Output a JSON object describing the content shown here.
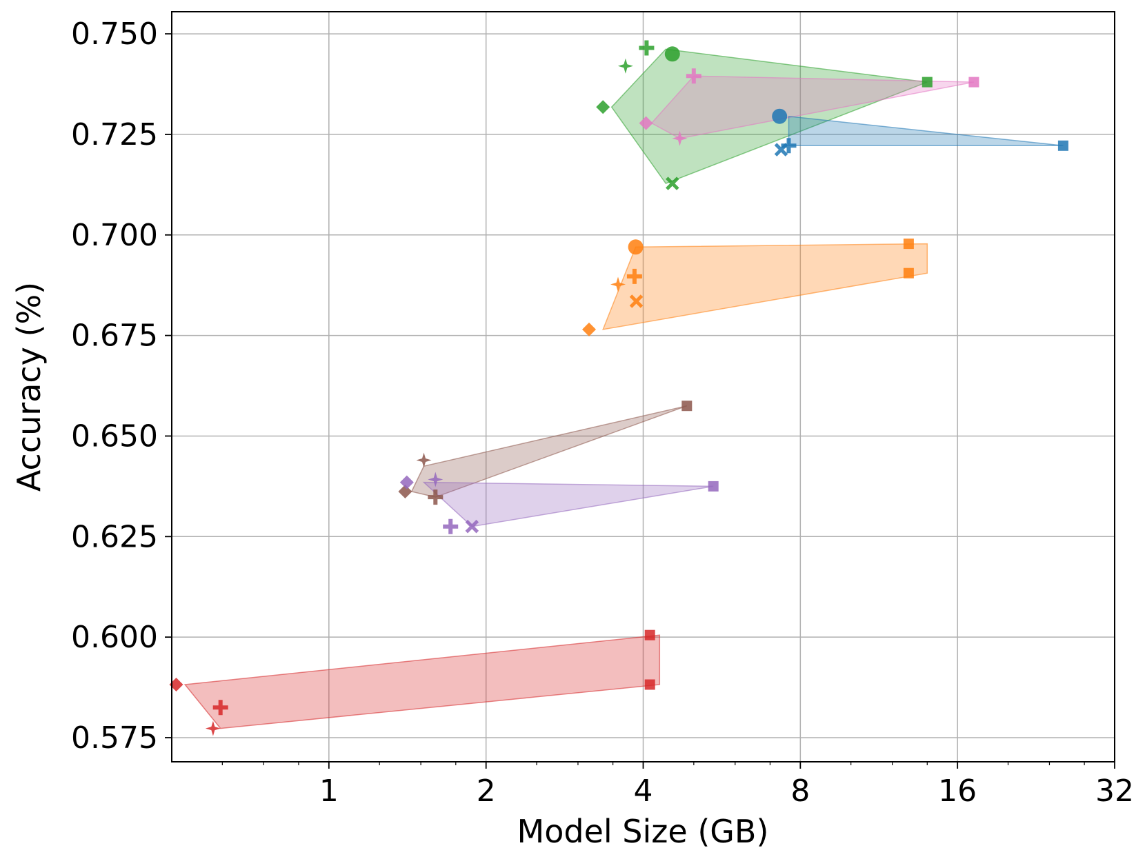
{
  "chart_data": {
    "type": "scatter",
    "title": "",
    "xlabel": "Model Size (GB)",
    "ylabel": "Accuracy (%)",
    "xscale": "log2",
    "xlim": [
      0.5,
      32
    ],
    "ylim": [
      0.569,
      0.7555
    ],
    "grid": true,
    "legend": "none",
    "xticks": [
      {
        "value": 1,
        "label": "1"
      },
      {
        "value": 2,
        "label": "2"
      },
      {
        "value": 4,
        "label": "4"
      },
      {
        "value": 8,
        "label": "8"
      },
      {
        "value": 16,
        "label": "16"
      },
      {
        "value": 32,
        "label": "32"
      }
    ],
    "yticks": [
      {
        "value": 0.575,
        "label": "0.575"
      },
      {
        "value": 0.6,
        "label": "0.600"
      },
      {
        "value": 0.625,
        "label": "0.625"
      },
      {
        "value": 0.65,
        "label": "0.650"
      },
      {
        "value": 0.675,
        "label": "0.675"
      },
      {
        "value": 0.7,
        "label": "0.700"
      },
      {
        "value": 0.725,
        "label": "0.725"
      },
      {
        "value": 0.75,
        "label": "0.750"
      }
    ],
    "series": [
      {
        "color": "#d62728",
        "points": [
          {
            "x": 0.51,
            "y": 0.5882,
            "marker": "diamond"
          },
          {
            "x": 0.62,
            "y": 0.5825,
            "marker": "plus"
          },
          {
            "x": 0.6,
            "y": 0.5773,
            "marker": "star"
          },
          {
            "x": 4.12,
            "y": 0.6005,
            "marker": "square"
          },
          {
            "x": 4.12,
            "y": 0.5882,
            "marker": "square"
          }
        ],
        "hull": [
          [
            0.53,
            0.5882
          ],
          [
            0.62,
            0.5773
          ],
          [
            4.3,
            0.5882
          ],
          [
            4.3,
            0.6005
          ],
          [
            0.53,
            0.5882
          ]
        ]
      },
      {
        "color": "#8c564b",
        "points": [
          {
            "x": 1.52,
            "y": 0.644,
            "marker": "star"
          },
          {
            "x": 1.6,
            "y": 0.6348,
            "marker": "plus"
          },
          {
            "x": 1.4,
            "y": 0.6362,
            "marker": "diamond"
          },
          {
            "x": 4.85,
            "y": 0.6575,
            "marker": "square"
          }
        ],
        "hull": [
          [
            1.44,
            0.6362
          ],
          [
            1.52,
            0.6425
          ],
          [
            4.85,
            0.6575
          ],
          [
            1.6,
            0.6348
          ],
          [
            1.44,
            0.6362
          ]
        ]
      },
      {
        "color": "#9467bd",
        "points": [
          {
            "x": 1.41,
            "y": 0.6385,
            "marker": "diamond"
          },
          {
            "x": 1.6,
            "y": 0.6392,
            "marker": "star"
          },
          {
            "x": 1.71,
            "y": 0.6275,
            "marker": "plus"
          },
          {
            "x": 1.88,
            "y": 0.6275,
            "marker": "x"
          },
          {
            "x": 5.45,
            "y": 0.6375,
            "marker": "square"
          }
        ],
        "hull": [
          [
            1.52,
            0.6385
          ],
          [
            5.45,
            0.6375
          ],
          [
            1.88,
            0.6275
          ],
          [
            1.52,
            0.6385
          ]
        ]
      },
      {
        "color": "#ff7f0e",
        "points": [
          {
            "x": 3.15,
            "y": 0.6765,
            "marker": "diamond"
          },
          {
            "x": 3.58,
            "y": 0.6877,
            "marker": "star"
          },
          {
            "x": 3.85,
            "y": 0.6897,
            "marker": "plus"
          },
          {
            "x": 3.88,
            "y": 0.6835,
            "marker": "x"
          },
          {
            "x": 3.87,
            "y": 0.697,
            "marker": "circle"
          },
          {
            "x": 12.9,
            "y": 0.6978,
            "marker": "square"
          },
          {
            "x": 12.9,
            "y": 0.6905,
            "marker": "square"
          }
        ],
        "hull": [
          [
            3.35,
            0.6765
          ],
          [
            3.87,
            0.697
          ],
          [
            14.0,
            0.6978
          ],
          [
            14.0,
            0.6905
          ],
          [
            3.35,
            0.6765
          ]
        ]
      },
      {
        "color": "#2ca02c",
        "points": [
          {
            "x": 4.06,
            "y": 0.7465,
            "marker": "plus"
          },
          {
            "x": 4.55,
            "y": 0.745,
            "marker": "circle"
          },
          {
            "x": 3.7,
            "y": 0.742,
            "marker": "star"
          },
          {
            "x": 3.35,
            "y": 0.7318,
            "marker": "diamond"
          },
          {
            "x": 4.55,
            "y": 0.7128,
            "marker": "x"
          },
          {
            "x": 14.0,
            "y": 0.738,
            "marker": "square"
          }
        ],
        "hull": [
          [
            3.48,
            0.7318
          ],
          [
            4.42,
            0.7462
          ],
          [
            14.0,
            0.738
          ],
          [
            4.42,
            0.7128
          ],
          [
            3.48,
            0.7318
          ]
        ]
      },
      {
        "color": "#e377c2",
        "points": [
          {
            "x": 5.0,
            "y": 0.7395,
            "marker": "plus"
          },
          {
            "x": 4.05,
            "y": 0.7278,
            "marker": "diamond"
          },
          {
            "x": 4.7,
            "y": 0.724,
            "marker": "star"
          },
          {
            "x": 17.2,
            "y": 0.738,
            "marker": "square"
          }
        ],
        "hull": [
          [
            4.15,
            0.7278
          ],
          [
            5.0,
            0.7395
          ],
          [
            17.2,
            0.738
          ],
          [
            4.7,
            0.724
          ],
          [
            4.15,
            0.7278
          ]
        ]
      },
      {
        "color": "#1f77b4",
        "points": [
          {
            "x": 7.3,
            "y": 0.7295,
            "marker": "circle"
          },
          {
            "x": 7.35,
            "y": 0.7212,
            "marker": "x"
          },
          {
            "x": 7.6,
            "y": 0.7222,
            "marker": "plus"
          },
          {
            "x": 25.5,
            "y": 0.7222,
            "marker": "square"
          }
        ],
        "hull": [
          [
            7.6,
            0.7295
          ],
          [
            25.5,
            0.7222
          ],
          [
            7.6,
            0.7222
          ],
          [
            7.6,
            0.7295
          ]
        ]
      }
    ]
  }
}
